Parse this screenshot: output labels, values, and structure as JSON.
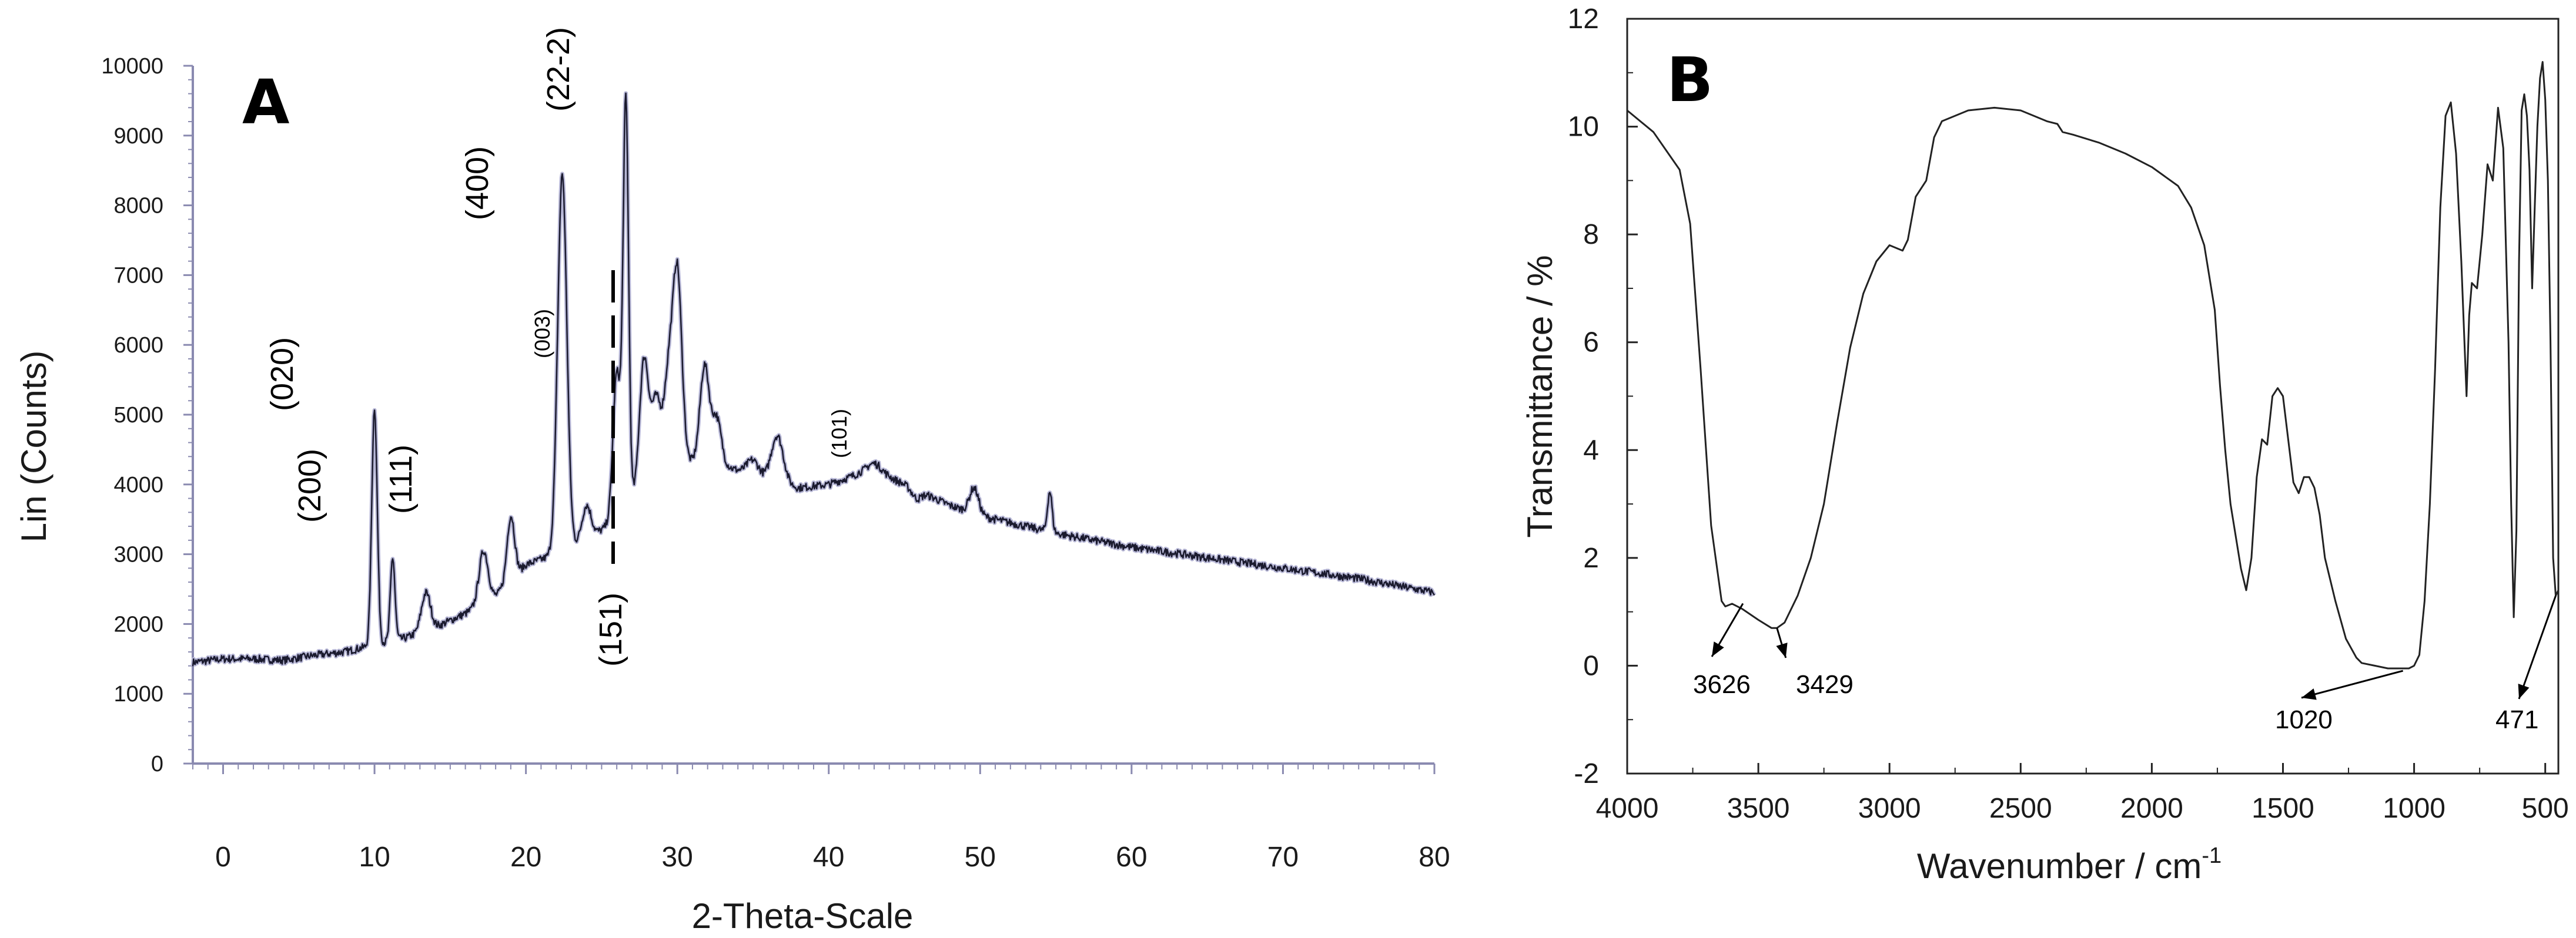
{
  "chart_data": [
    {
      "type": "line",
      "panel_label": "A",
      "xlabel": "2-Theta-Scale",
      "ylabel": "Lin (Counts)",
      "xlim": [
        -2,
        80
      ],
      "ylim": [
        0,
        10000
      ],
      "x_ticks": [
        "0",
        "10",
        "20",
        "30",
        "40",
        "50",
        "60",
        "70",
        "80"
      ],
      "y_ticks": [
        "0",
        "1000",
        "2000",
        "3000",
        "4000",
        "5000",
        "6000",
        "7000",
        "8000",
        "9000",
        "10000"
      ],
      "series": [
        {
          "color": "#1a1a2e",
          "baseline": [
            [
              -2,
              1450
            ],
            [
              0,
              1500
            ],
            [
              2,
              1500
            ],
            [
              4,
              1480
            ],
            [
              6,
              1550
            ],
            [
              8,
              1600
            ],
            [
              10,
              1700
            ],
            [
              12,
              1800
            ],
            [
              14,
              1950
            ],
            [
              16,
              2150
            ],
            [
              18,
              2400
            ],
            [
              20,
              2850
            ],
            [
              22,
              3000
            ],
            [
              24,
              3200
            ],
            [
              26,
              3500
            ],
            [
              28,
              4000
            ],
            [
              30,
              4300
            ],
            [
              32,
              4350
            ],
            [
              34,
              4200
            ],
            [
              36,
              4050
            ],
            [
              38,
              3950
            ],
            [
              40,
              4000
            ],
            [
              42,
              4150
            ],
            [
              44,
              4100
            ],
            [
              46,
              3900
            ],
            [
              48,
              3700
            ],
            [
              50,
              3550
            ],
            [
              55,
              3300
            ],
            [
              60,
              3100
            ],
            [
              65,
              2950
            ],
            [
              70,
              2800
            ],
            [
              75,
              2650
            ],
            [
              80,
              2450
            ]
          ],
          "peaks": [
            [
              10.0,
              5100,
              0.18
            ],
            [
              11.2,
              2950,
              0.15
            ],
            [
              13.4,
              2450,
              0.3
            ],
            [
              17.2,
              3050,
              0.3
            ],
            [
              19.0,
              3550,
              0.25
            ],
            [
              22.4,
              8450,
              0.3
            ],
            [
              24.0,
              3700,
              0.3
            ],
            [
              26.0,
              5600,
              0.25
            ],
            [
              26.6,
              9450,
              0.18
            ],
            [
              27.8,
              5800,
              0.3
            ],
            [
              28.6,
              5200,
              0.3
            ],
            [
              29.4,
              5500,
              0.3
            ],
            [
              30.0,
              7000,
              0.3
            ],
            [
              31.8,
              5700,
              0.3
            ],
            [
              32.6,
              4950,
              0.3
            ],
            [
              35.0,
              4350,
              0.4
            ],
            [
              36.6,
              4700,
              0.4
            ],
            [
              43.0,
              4300,
              0.5
            ],
            [
              45.8,
              3800,
              0.3
            ],
            [
              49.6,
              3950,
              0.3
            ],
            [
              54.6,
              3900,
              0.15
            ]
          ]
        }
      ],
      "annotations": [
        "(020)",
        "(200)",
        "(111)",
        "(400)",
        "(003)",
        "(22-2)",
        "(151)",
        "(101)"
      ]
    },
    {
      "type": "line",
      "panel_label": "B",
      "xlabel": "Wavenumber / cm",
      "xlabel_superscript": "-1",
      "ylabel": "Transmittance / %",
      "xlim": [
        4000,
        450
      ],
      "ylim": [
        -2,
        12
      ],
      "x_ticks": [
        "4000",
        "3500",
        "3000",
        "2500",
        "2000",
        "1500",
        "1000",
        "500"
      ],
      "y_ticks": [
        "-2",
        "0",
        "2",
        "4",
        "6",
        "8",
        "10",
        "12"
      ],
      "series": [
        {
          "color": "#222222",
          "points": [
            [
              4000,
              10.3
            ],
            [
              3900,
              9.9
            ],
            [
              3800,
              9.2
            ],
            [
              3760,
              8.2
            ],
            [
              3720,
              5.5
            ],
            [
              3680,
              2.6
            ],
            [
              3640,
              1.2
            ],
            [
              3626,
              1.1
            ],
            [
              3600,
              1.15
            ],
            [
              3560,
              1.05
            ],
            [
              3500,
              0.85
            ],
            [
              3450,
              0.7
            ],
            [
              3429,
              0.7
            ],
            [
              3400,
              0.8
            ],
            [
              3350,
              1.3
            ],
            [
              3300,
              2.0
            ],
            [
              3250,
              3.0
            ],
            [
              3200,
              4.5
            ],
            [
              3150,
              5.9
            ],
            [
              3100,
              6.9
            ],
            [
              3050,
              7.5
            ],
            [
              3000,
              7.8
            ],
            [
              2950,
              7.7
            ],
            [
              2930,
              7.9
            ],
            [
              2900,
              8.7
            ],
            [
              2860,
              9.0
            ],
            [
              2830,
              9.8
            ],
            [
              2800,
              10.1
            ],
            [
              2700,
              10.3
            ],
            [
              2600,
              10.35
            ],
            [
              2500,
              10.3
            ],
            [
              2400,
              10.1
            ],
            [
              2360,
              10.05
            ],
            [
              2340,
              9.9
            ],
            [
              2300,
              9.85
            ],
            [
              2200,
              9.7
            ],
            [
              2100,
              9.5
            ],
            [
              2000,
              9.25
            ],
            [
              1900,
              8.9
            ],
            [
              1850,
              8.5
            ],
            [
              1800,
              7.8
            ],
            [
              1760,
              6.6
            ],
            [
              1740,
              5.2
            ],
            [
              1720,
              4.0
            ],
            [
              1700,
              3.0
            ],
            [
              1680,
              2.4
            ],
            [
              1660,
              1.8
            ],
            [
              1640,
              1.4
            ],
            [
              1620,
              2.0
            ],
            [
              1600,
              3.5
            ],
            [
              1580,
              4.2
            ],
            [
              1560,
              4.1
            ],
            [
              1540,
              5.0
            ],
            [
              1520,
              5.15
            ],
            [
              1500,
              5.0
            ],
            [
              1480,
              4.2
            ],
            [
              1460,
              3.4
            ],
            [
              1440,
              3.2
            ],
            [
              1420,
              3.5
            ],
            [
              1400,
              3.5
            ],
            [
              1380,
              3.3
            ],
            [
              1360,
              2.8
            ],
            [
              1340,
              2.0
            ],
            [
              1300,
              1.2
            ],
            [
              1260,
              0.5
            ],
            [
              1220,
              0.15
            ],
            [
              1200,
              0.05
            ],
            [
              1150,
              0.0
            ],
            [
              1100,
              -0.05
            ],
            [
              1050,
              -0.05
            ],
            [
              1020,
              -0.05
            ],
            [
              1000,
              0.0
            ],
            [
              980,
              0.2
            ],
            [
              960,
              1.2
            ],
            [
              940,
              3.0
            ],
            [
              920,
              5.5
            ],
            [
              900,
              8.5
            ],
            [
              880,
              10.2
            ],
            [
              860,
              10.45
            ],
            [
              840,
              9.5
            ],
            [
              820,
              7.5
            ],
            [
              800,
              5.0
            ],
            [
              790,
              6.5
            ],
            [
              780,
              7.1
            ],
            [
              760,
              7.0
            ],
            [
              740,
              8.0
            ],
            [
              720,
              9.3
            ],
            [
              700,
              9.0
            ],
            [
              680,
              10.35
            ],
            [
              660,
              9.6
            ],
            [
              640,
              6.0
            ],
            [
              630,
              3.0
            ],
            [
              620,
              0.9
            ],
            [
              610,
              2.5
            ],
            [
              600,
              7.5
            ],
            [
              590,
              10.3
            ],
            [
              580,
              10.6
            ],
            [
              570,
              10.2
            ],
            [
              560,
              9.2
            ],
            [
              550,
              7.0
            ],
            [
              540,
              8.5
            ],
            [
              530,
              10.0
            ],
            [
              520,
              10.9
            ],
            [
              510,
              11.2
            ],
            [
              500,
              10.5
            ],
            [
              490,
              9.0
            ],
            [
              480,
              6.0
            ],
            [
              470,
              2.0
            ],
            [
              460,
              1.3
            ],
            [
              450,
              1.4
            ]
          ]
        }
      ],
      "annotations": [
        "3626",
        "3429",
        "1020",
        "471"
      ]
    }
  ]
}
